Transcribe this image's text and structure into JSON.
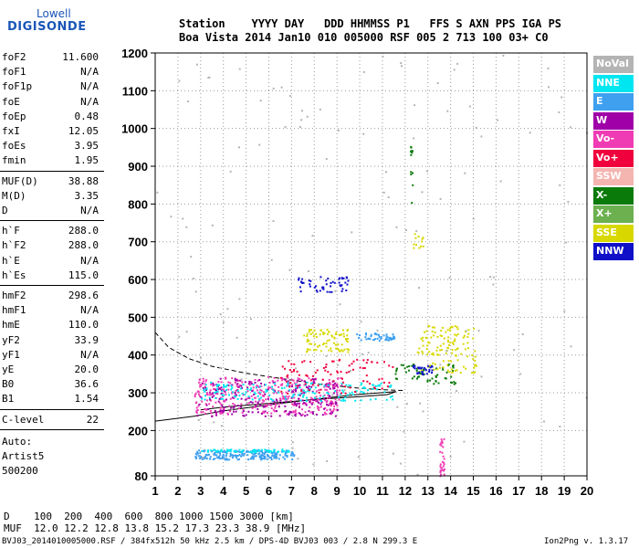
{
  "logo": {
    "top": "Lowell",
    "bottom": "DIGISONDE",
    "color": "#1a56b8"
  },
  "header": {
    "row1": "Station    YYYY DAY   DDD HHMMSS P1   FFS S AXN PPS IGA PS",
    "row2": "Boa Vista 2014 Jan10 010 005000 RSF 005 2 713 100 03+ C0"
  },
  "side_groups": [
    [
      {
        "label": "foF2",
        "value": "11.600"
      },
      {
        "label": "foF1",
        "value": "N/A"
      },
      {
        "label": "foF1p",
        "value": "N/A"
      },
      {
        "label": "foE",
        "value": "N/A"
      },
      {
        "label": "foEp",
        "value": "0.48"
      },
      {
        "label": "fxI",
        "value": "12.05"
      },
      {
        "label": "foEs",
        "value": "3.95"
      },
      {
        "label": "fmin",
        "value": "1.95"
      }
    ],
    [
      {
        "label": "MUF(D)",
        "value": "38.88"
      },
      {
        "label": "M(D)",
        "value": "3.35"
      },
      {
        "label": "D",
        "value": "N/A"
      }
    ],
    [
      {
        "label": "h`F",
        "value": "288.0"
      },
      {
        "label": "h`F2",
        "value": "288.0"
      },
      {
        "label": "h`E",
        "value": "N/A"
      },
      {
        "label": "h`Es",
        "value": "115.0"
      }
    ],
    [
      {
        "label": "hmF2",
        "value": "298.6"
      },
      {
        "label": "hmF1",
        "value": "N/A"
      },
      {
        "label": "hmE",
        "value": "110.0"
      },
      {
        "label": "yF2",
        "value": "33.9"
      },
      {
        "label": "yF1",
        "value": "N/A"
      },
      {
        "label": "yE",
        "value": "20.0"
      },
      {
        "label": "B0",
        "value": "36.6"
      },
      {
        "label": "B1",
        "value": "1.54"
      }
    ],
    [
      {
        "label": "C-level",
        "value": "22"
      }
    ]
  ],
  "autoscale": {
    "line1": "Auto:",
    "line2": "Artist5",
    "line3": "500200"
  },
  "legend": [
    {
      "label": "NoVal",
      "color": "#b4b4b4"
    },
    {
      "label": "NNE",
      "color": "#00e6f0"
    },
    {
      "label": "E",
      "color": "#3fa0f0"
    },
    {
      "label": "W",
      "color": "#a000a8"
    },
    {
      "label": "Vo-",
      "color": "#f03cb4"
    },
    {
      "label": "Vo+",
      "color": "#f0003c"
    },
    {
      "label": "SSW",
      "color": "#f4b4b0"
    },
    {
      "label": "X-",
      "color": "#0a7a0a"
    },
    {
      "label": "X+",
      "color": "#6cb050"
    },
    {
      "label": "SSE",
      "color": "#d8d800"
    },
    {
      "label": "NNW",
      "color": "#1010c8"
    }
  ],
  "footer": {
    "line1": "D    100  200  400  600  800 1000 1500 3000 [km]",
    "line2": "MUF  12.0 12.2 12.8 13.8 15.2 17.3 23.3 38.9 [MHz]",
    "line3": "BVJ03_2014010005000.RSF / 384fx512h 50 kHz 2.5 km / DPS-4D BVJ03 003 / 2.8 N 299.3 E",
    "version": "Ion2Png v. 1.3.17"
  },
  "chart_data": {
    "type": "scatter",
    "title": "",
    "xlabel": "",
    "ylabel": "",
    "xlim": [
      1,
      20
    ],
    "ylim": [
      80,
      1200
    ],
    "xticks": [
      1,
      2,
      3,
      4,
      5,
      6,
      7,
      8,
      9,
      10,
      11,
      12,
      13,
      14,
      15,
      16,
      17,
      18,
      19,
      20
    ],
    "yticks": [
      80,
      200,
      300,
      400,
      500,
      600,
      700,
      800,
      900,
      1000,
      1100,
      1200
    ],
    "grid": "dotted",
    "legend_placement": "right",
    "echo_clusters": [
      {
        "series": "E",
        "x": [
          2.7,
          7.1
        ],
        "y": [
          125,
          150
        ],
        "count": 220
      },
      {
        "series": "NNE",
        "x": [
          3.0,
          7.0
        ],
        "y": [
          145,
          152
        ],
        "count": 60
      },
      {
        "series": "Vo-",
        "x": [
          2.7,
          9.2
        ],
        "y": [
          245,
          345
        ],
        "count": 360
      },
      {
        "series": "W",
        "x": [
          2.8,
          9.0
        ],
        "y": [
          240,
          340
        ],
        "count": 220
      },
      {
        "series": "NNE",
        "x": [
          3.0,
          11.5
        ],
        "y": [
          280,
          330
        ],
        "count": 170
      },
      {
        "series": "Vo+",
        "x": [
          6.5,
          11.5
        ],
        "y": [
          300,
          390
        ],
        "count": 90
      },
      {
        "series": "SSE",
        "x": [
          7.5,
          9.5
        ],
        "y": [
          410,
          470
        ],
        "count": 80
      },
      {
        "series": "E",
        "x": [
          9.8,
          11.5
        ],
        "y": [
          440,
          460
        ],
        "count": 50
      },
      {
        "series": "NNW",
        "x": [
          7.2,
          9.5
        ],
        "y": [
          565,
          610
        ],
        "count": 50
      },
      {
        "series": "X-",
        "x": [
          11.5,
          14.2
        ],
        "y": [
          325,
          380
        ],
        "count": 60
      },
      {
        "series": "SSE",
        "x": [
          12.5,
          15.1
        ],
        "y": [
          355,
          480
        ],
        "count": 130
      },
      {
        "series": "NNW",
        "x": [
          12.3,
          13.2
        ],
        "y": [
          350,
          375
        ],
        "count": 30
      },
      {
        "series": "Vo-",
        "x": [
          13.5,
          13.7
        ],
        "y": [
          80,
          180
        ],
        "count": 30
      },
      {
        "series": "SSE",
        "x": [
          12.3,
          12.8
        ],
        "y": [
          680,
          725
        ],
        "count": 12
      },
      {
        "series": "X-",
        "x": [
          12.2,
          12.3
        ],
        "y": [
          800,
          960
        ],
        "count": 12
      },
      {
        "series": "NoVal",
        "x": [
          1,
          20
        ],
        "y": [
          80,
          1200
        ],
        "count": 140
      }
    ],
    "solid_trace": [
      [
        1,
        225
      ],
      [
        2.7,
        238
      ],
      [
        4,
        252
      ],
      [
        6,
        268
      ],
      [
        8,
        283
      ],
      [
        10,
        296
      ],
      [
        11.6,
        303
      ],
      [
        11.2,
        295
      ],
      [
        10,
        290
      ],
      [
        8,
        282
      ],
      [
        6,
        272
      ],
      [
        4,
        262
      ],
      [
        3,
        255
      ]
    ],
    "dashed_trace": [
      [
        1,
        460
      ],
      [
        1.6,
        420
      ],
      [
        2.5,
        390
      ],
      [
        3.5,
        370
      ],
      [
        5,
        352
      ],
      [
        6.5,
        338
      ],
      [
        8,
        325
      ],
      [
        9,
        318
      ],
      [
        10,
        312
      ],
      [
        11,
        308
      ],
      [
        12,
        306
      ]
    ]
  }
}
